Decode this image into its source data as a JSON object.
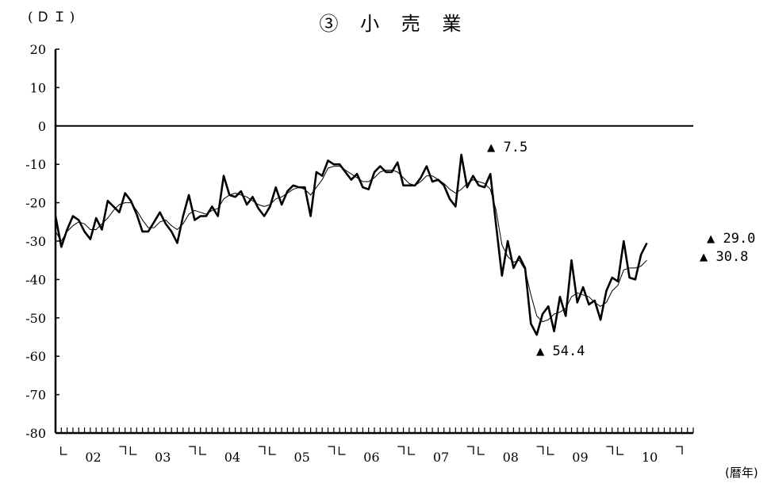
{
  "chart_data": {
    "type": "line",
    "title": "③ 小 売 業",
    "ylabel": "(ＤＩ)",
    "xlabel": "(暦年)",
    "ylim": [
      -80,
      20
    ],
    "yticks": [
      "20",
      "10",
      "0",
      "-10",
      "-20",
      "-30",
      "-40",
      "-50",
      "-60",
      "-70",
      "-80"
    ],
    "xtick_labels": [
      "02",
      "03",
      "04",
      "05",
      "06",
      "07",
      "08",
      "09",
      "10"
    ],
    "x_start": "2001-12",
    "months": 111,
    "series": [
      {
        "values": [
          -23.5,
          -31.5,
          -27,
          -23.5,
          -24.5,
          -27.5,
          -29.5,
          -24,
          -27,
          -19.5,
          -21,
          -22.5,
          -17.5,
          -19.5,
          -23,
          -27.5,
          -27.5,
          -25,
          -22.5,
          -25.5,
          -27.5,
          -30.5,
          -23.5,
          -18,
          -24.5,
          -23.5,
          -23.5,
          -21,
          -23.5,
          -13,
          -18,
          -18.5,
          -17,
          -20.5,
          -18.5,
          -21.5,
          -23.5,
          -21,
          -16,
          -20.5,
          -17,
          -15.5,
          -16,
          -16,
          -23.5,
          -12,
          -13,
          -9,
          -10,
          -10,
          -12,
          -14,
          -12.5,
          -16,
          -16.5,
          -12,
          -10.5,
          -12,
          -12,
          -9.5,
          -15.5,
          -15.5,
          -15.5,
          -13.5,
          -10.5,
          -14.5,
          -14,
          -15.5,
          -19,
          -21,
          -7.5,
          -16,
          -13,
          -15.5,
          -16,
          -12.5,
          -26,
          -39,
          -30,
          -37,
          -34,
          -37,
          -51.5,
          -54.4,
          -49,
          -47,
          -53.5,
          -44.5,
          -49.5,
          -35,
          -46,
          -42,
          -46.5,
          -45.5,
          -50.5,
          -43,
          -39.5,
          -40.5,
          -30,
          -39.5,
          -40,
          -33.5,
          -30.5
        ]
      },
      {
        "values": [
          -27.5,
          -30,
          -27.5,
          -26,
          -25,
          -25.5,
          -27,
          -27,
          -25.5,
          -24,
          -22,
          -20.5,
          -20,
          -20,
          -22,
          -24.5,
          -26.5,
          -26.5,
          -25,
          -24.5,
          -26,
          -27,
          -25.5,
          -23,
          -22,
          -22.5,
          -23,
          -22,
          -21.5,
          -19,
          -18,
          -17.5,
          -18,
          -18.5,
          -19.5,
          -20.5,
          -21,
          -20.5,
          -19,
          -18.5,
          -17.5,
          -16.5,
          -16,
          -16.5,
          -18,
          -16,
          -14,
          -11,
          -10.5,
          -10.5,
          -11.5,
          -12.5,
          -13.5,
          -14.5,
          -14.5,
          -13.5,
          -12,
          -11.5,
          -11.5,
          -12,
          -13.5,
          -15,
          -15.5,
          -14.5,
          -13,
          -13,
          -14,
          -15,
          -16.5,
          -17.5,
          -16.5,
          -15,
          -14,
          -14.5,
          -15,
          -16.5,
          -22,
          -31,
          -34,
          -35.5,
          -35,
          -37.5,
          -44,
          -49.5,
          -51,
          -50.5,
          -49,
          -48.5,
          -47.5,
          -44.5,
          -43.5,
          -44,
          -44.5,
          -46,
          -47,
          -46,
          -43,
          -41.5,
          -37.5,
          -37,
          -37,
          -36.5,
          -35
        ]
      }
    ],
    "annotations": [
      {
        "label": "▲ 7.5",
        "x": "2007-09",
        "y": -7.5
      },
      {
        "label": "▲ 54.4",
        "x": "2008-11",
        "y": -54.4
      },
      {
        "label": "▲ 29.0",
        "y": -29.0
      },
      {
        "label": "▲ 30.8",
        "y": -30.8
      }
    ],
    "zero_line": true,
    "grid": false
  }
}
